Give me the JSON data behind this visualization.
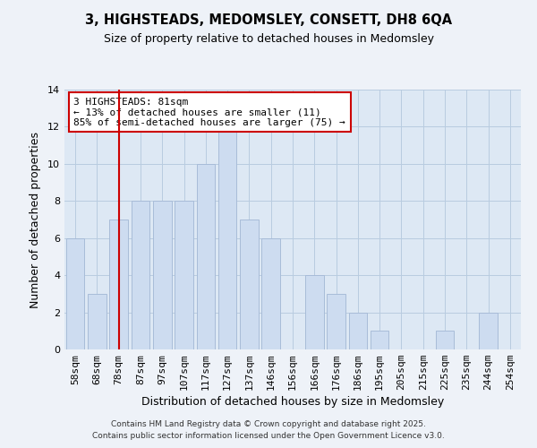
{
  "title": "3, HIGHSTEADS, MEDOMSLEY, CONSETT, DH8 6QA",
  "subtitle": "Size of property relative to detached houses in Medomsley",
  "xlabel": "Distribution of detached houses by size in Medomsley",
  "ylabel": "Number of detached properties",
  "bar_labels": [
    "58sqm",
    "68sqm",
    "78sqm",
    "87sqm",
    "97sqm",
    "107sqm",
    "117sqm",
    "127sqm",
    "137sqm",
    "146sqm",
    "156sqm",
    "166sqm",
    "176sqm",
    "186sqm",
    "195sqm",
    "205sqm",
    "215sqm",
    "225sqm",
    "235sqm",
    "244sqm",
    "254sqm"
  ],
  "bar_values": [
    6,
    3,
    7,
    8,
    8,
    8,
    10,
    12,
    7,
    6,
    0,
    4,
    3,
    2,
    1,
    0,
    0,
    1,
    0,
    2,
    0
  ],
  "bar_color": "#cddcf0",
  "bar_edge_color": "#a8bcd8",
  "grid_color": "#b8cce0",
  "ylim": [
    0,
    14
  ],
  "yticks": [
    0,
    2,
    4,
    6,
    8,
    10,
    12,
    14
  ],
  "vline_x_index": 2,
  "vline_color": "#cc0000",
  "annotation_title": "3 HIGHSTEADS: 81sqm",
  "annotation_line1": "← 13% of detached houses are smaller (11)",
  "annotation_line2": "85% of semi-detached houses are larger (75) →",
  "annotation_box_color": "#ffffff",
  "annotation_box_edge": "#cc0000",
  "footer1": "Contains HM Land Registry data © Crown copyright and database right 2025.",
  "footer2": "Contains public sector information licensed under the Open Government Licence v3.0.",
  "background_color": "#eef2f8",
  "plot_bg_color": "#dde8f4"
}
